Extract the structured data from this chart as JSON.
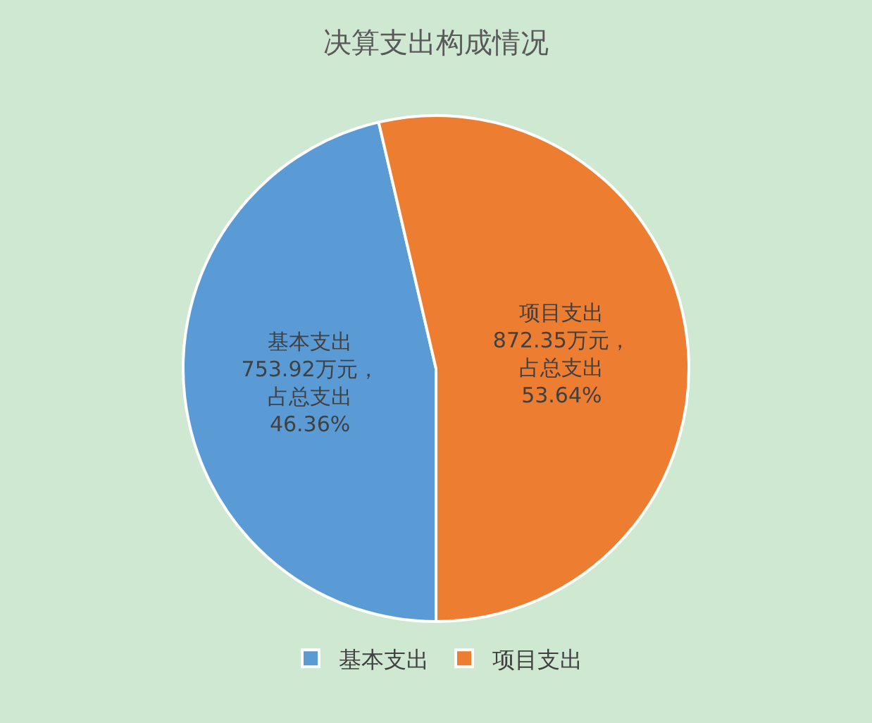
{
  "chart_data": {
    "type": "pie",
    "title": "决算支出构成情况",
    "categories": [
      "基本支出",
      "项目支出"
    ],
    "values": [
      753.92,
      872.35
    ],
    "colors": [
      "#5b9bd5",
      "#ed7d31"
    ],
    "value_labels": [
      "基本支出753.92万元，占总支出46.36%",
      "项目支出872.35万元，占总支出53.64%"
    ],
    "legend": "bottom"
  }
}
